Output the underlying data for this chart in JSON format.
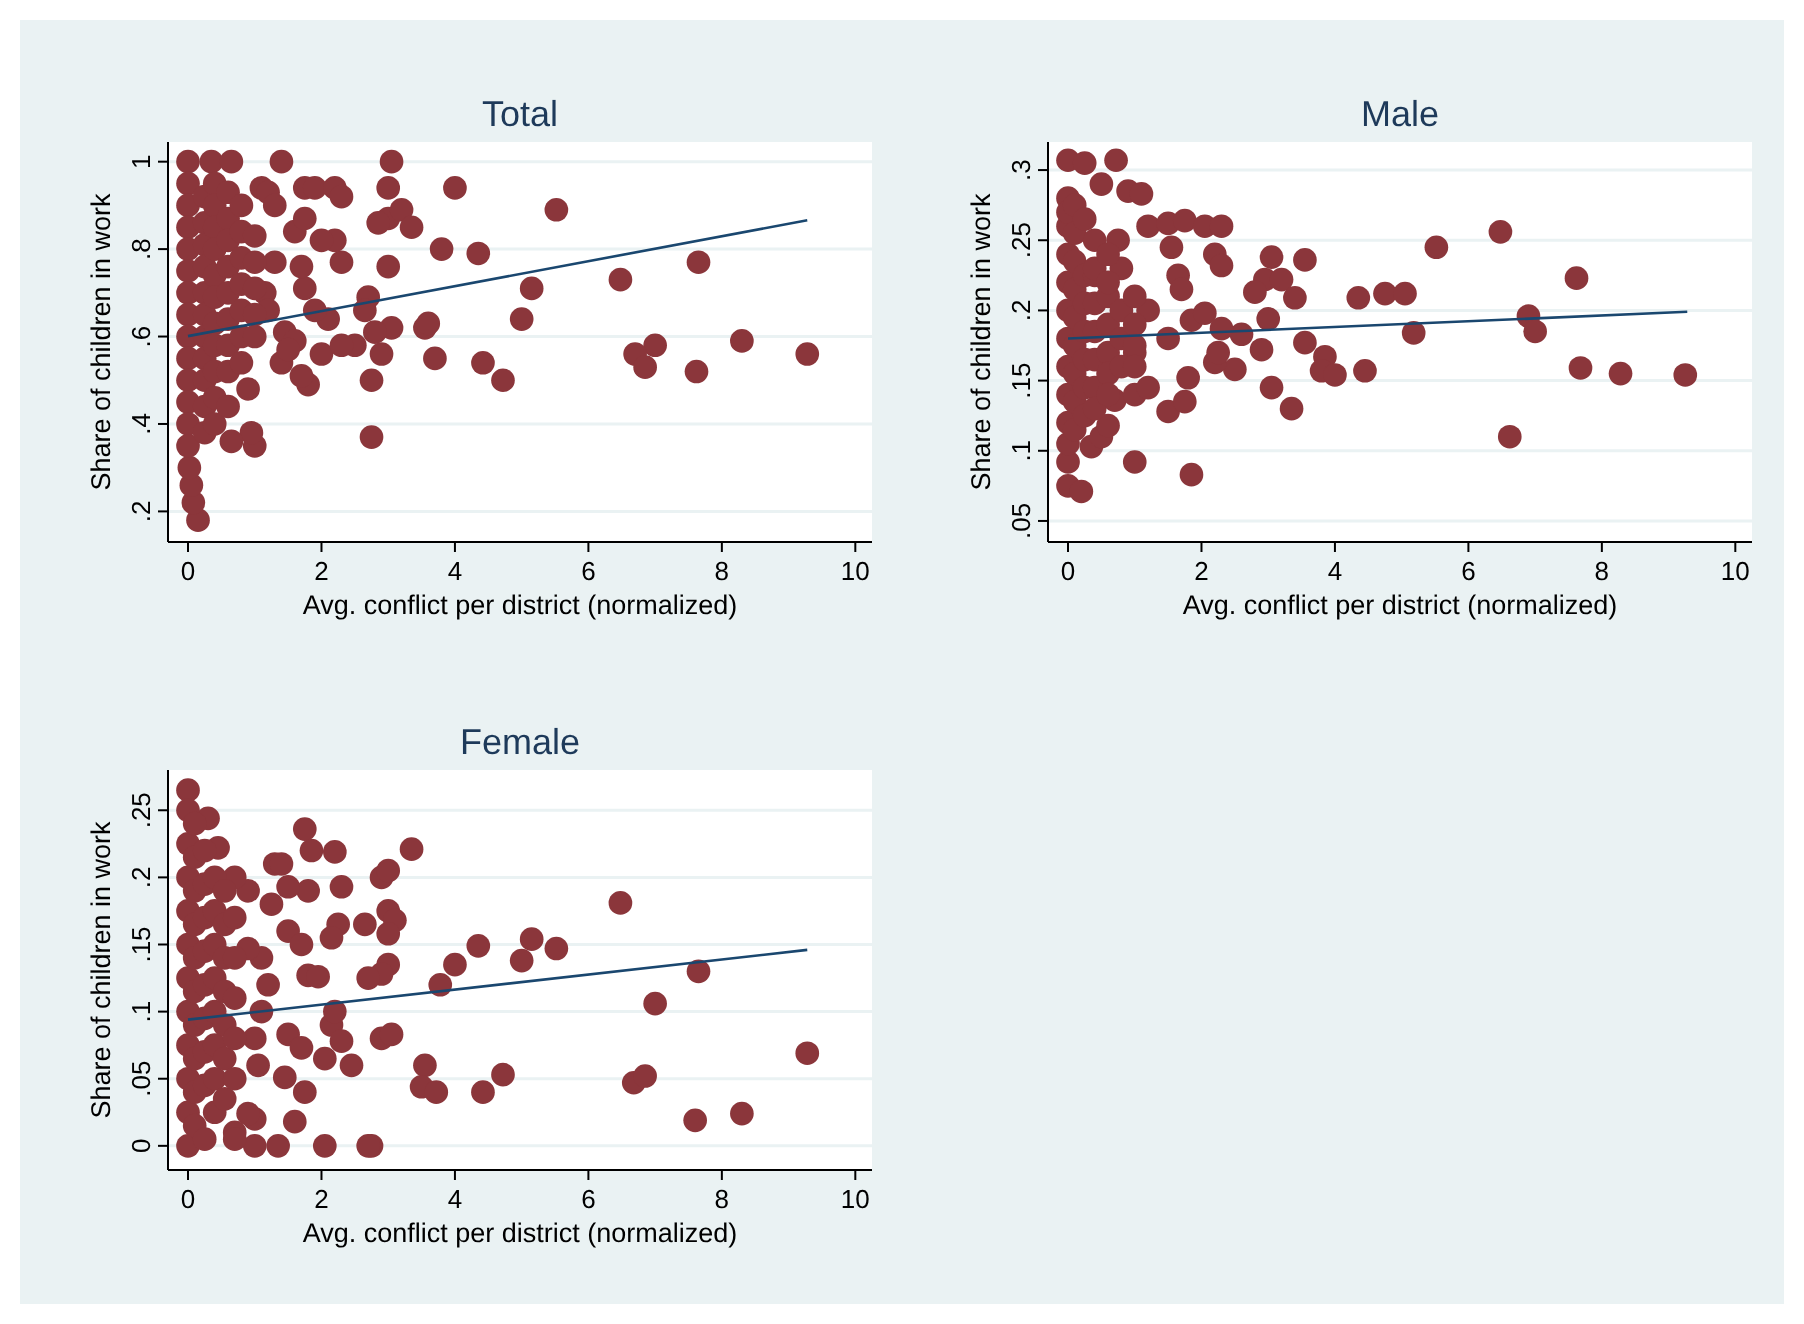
{
  "chart_data": [
    {
      "type": "scatter",
      "title": "Total",
      "xlabel": "Avg. conflict per district (normalized)",
      "ylabel": "Share of children in work",
      "xlim": [
        -0.3,
        10.25
      ],
      "ylim": [
        0.13,
        1.045
      ],
      "xticks": [
        0,
        2,
        4,
        6,
        8,
        10
      ],
      "yticks": [
        {
          "value": 0.2,
          "label": ".2"
        },
        {
          "value": 0.4,
          "label": ".4"
        },
        {
          "value": 0.6,
          "label": ".6"
        },
        {
          "value": 0.8,
          "label": ".8"
        },
        {
          "value": 1,
          "label": "1"
        }
      ],
      "grid": "y",
      "marker": "circle",
      "series": [
        {
          "type": "scatter",
          "color": "#8b363b",
          "x": [
            1.4,
            3.05,
            0.35,
            0.65,
            1.75,
            1.9,
            2.2,
            2.3,
            3.0,
            4.0,
            5.52,
            3.0,
            3.2,
            3.35,
            2.85,
            3.8,
            4.35,
            2.3,
            3.0,
            7.65,
            6.48,
            5.15,
            2.7,
            2.65,
            5.0,
            3.55,
            3.6,
            3.05,
            2.8,
            8.3,
            7.0,
            6.7,
            6.85,
            7.62,
            9.28,
            2.9,
            3.7,
            4.42,
            4.72,
            2.75,
            2.75,
            1.8,
            1.7,
            1.4,
            2.0,
            2.5,
            2.3,
            2.1,
            1.9,
            1.75,
            1.7,
            2.2,
            2.0,
            1.6,
            1.75,
            1.1,
            1.2,
            1.3,
            0.9,
            1.0,
            0.95,
            0.65,
            0.15,
            0.08,
            0.05,
            0.02,
            1.15,
            1.2,
            1.3,
            1.45,
            1.6,
            1.5,
            0,
            0,
            0,
            0,
            0,
            0,
            0,
            0,
            0,
            0,
            0,
            0,
            0,
            0,
            0.25,
            0.25,
            0.25,
            0.25,
            0.25,
            0.25,
            0.25,
            0.25,
            0.25,
            0.25,
            0.25,
            0.4,
            0.4,
            0.4,
            0.4,
            0.4,
            0.4,
            0.4,
            0.4,
            0.4,
            0.4,
            0.4,
            0.6,
            0.6,
            0.6,
            0.6,
            0.6,
            0.6,
            0.6,
            0.6,
            0.6,
            0.8,
            0.8,
            0.8,
            0.8,
            0.8,
            0.8,
            0.8,
            1.0,
            1.0,
            1.0,
            1.0,
            1.0
          ],
          "values": [
            1.0,
            1.0,
            1.0,
            1.0,
            0.94,
            0.94,
            0.94,
            0.92,
            0.94,
            0.94,
            0.89,
            0.87,
            0.89,
            0.85,
            0.86,
            0.8,
            0.79,
            0.77,
            0.76,
            0.77,
            0.73,
            0.71,
            0.69,
            0.66,
            0.64,
            0.62,
            0.63,
            0.62,
            0.61,
            0.59,
            0.58,
            0.56,
            0.53,
            0.52,
            0.56,
            0.56,
            0.55,
            0.54,
            0.5,
            0.5,
            0.37,
            0.49,
            0.51,
            0.54,
            0.56,
            0.58,
            0.58,
            0.64,
            0.66,
            0.71,
            0.76,
            0.82,
            0.82,
            0.84,
            0.87,
            0.94,
            0.93,
            0.9,
            0.48,
            0.35,
            0.38,
            0.36,
            0.18,
            0.22,
            0.26,
            0.3,
            0.7,
            0.66,
            0.77,
            0.61,
            0.59,
            0.57,
            1.0,
            0.95,
            0.9,
            0.85,
            0.8,
            0.75,
            0.7,
            0.65,
            0.6,
            0.55,
            0.5,
            0.45,
            0.4,
            0.35,
            0.92,
            0.86,
            0.81,
            0.76,
            0.7,
            0.65,
            0.6,
            0.55,
            0.5,
            0.44,
            0.38,
            0.95,
            0.9,
            0.85,
            0.8,
            0.74,
            0.69,
            0.63,
            0.58,
            0.52,
            0.46,
            0.4,
            0.93,
            0.87,
            0.82,
            0.76,
            0.7,
            0.64,
            0.58,
            0.52,
            0.44,
            0.9,
            0.84,
            0.78,
            0.72,
            0.66,
            0.6,
            0.54,
            0.83,
            0.77,
            0.71,
            0.65,
            0.6
          ]
        },
        {
          "type": "line",
          "color": "#1a476f",
          "x": [
            0,
            9.28
          ],
          "values": [
            0.601,
            0.866
          ],
          "marker": "none"
        }
      ]
    },
    {
      "type": "scatter",
      "title": "Male",
      "xlabel": "Avg. conflict per district (normalized)",
      "ylabel": "Share of children in work",
      "xlim": [
        -0.3,
        10.25
      ],
      "ylim": [
        0.035,
        0.32
      ],
      "xticks": [
        0,
        2,
        4,
        6,
        8,
        10
      ],
      "yticks": [
        {
          "value": 0.05,
          "label": ".05"
        },
        {
          "value": 0.1,
          "label": ".1"
        },
        {
          "value": 0.15,
          "label": ".15"
        },
        {
          "value": 0.2,
          "label": ".2"
        },
        {
          "value": 0.25,
          "label": ".25"
        },
        {
          "value": 0.3,
          "label": ".3"
        }
      ],
      "grid": "y",
      "marker": "circle",
      "series": [
        {
          "type": "scatter",
          "color": "#8b363b",
          "x": [
            0,
            0.25,
            0.72,
            0.5,
            0.9,
            1.1,
            1.2,
            1.5,
            1.75,
            2.05,
            2.3,
            1.55,
            2.2,
            2.3,
            3.05,
            3.55,
            5.52,
            6.48,
            7.62,
            2.95,
            3.2,
            2.8,
            3.4,
            4.35,
            4.75,
            5.05,
            6.9,
            7.0,
            5.18,
            3.0,
            2.6,
            2.9,
            3.55,
            3.85,
            3.8,
            4.0,
            4.45,
            7.68,
            8.28,
            9.25,
            3.05,
            3.35,
            6.62,
            1.85,
            1.0,
            0,
            0,
            0.2,
            0.35,
            0.5,
            0.6,
            0.7,
            1.0,
            1.2,
            1.5,
            1.75,
            1.8,
            2.5,
            2.2,
            2.25,
            1.85,
            2.05,
            2.3,
            1.65,
            1.7,
            1.2,
            1.5,
            1.0,
            0.8,
            0.75,
            0,
            0,
            0,
            0,
            0,
            0,
            0,
            0,
            0,
            0,
            0,
            0.1,
            0.1,
            0.1,
            0.1,
            0.1,
            0.1,
            0.1,
            0.1,
            0.1,
            0.25,
            0.25,
            0.25,
            0.25,
            0.25,
            0.25,
            0.25,
            0.4,
            0.4,
            0.4,
            0.4,
            0.4,
            0.4,
            0.4,
            0.4,
            0.6,
            0.6,
            0.6,
            0.6,
            0.6,
            0.6,
            0.6,
            0.8,
            0.8,
            0.8,
            1.0,
            1.0,
            1.0,
            1.0
          ],
          "values": [
            0.307,
            0.305,
            0.307,
            0.29,
            0.285,
            0.283,
            0.26,
            0.262,
            0.264,
            0.26,
            0.26,
            0.245,
            0.24,
            0.232,
            0.238,
            0.236,
            0.245,
            0.256,
            0.223,
            0.222,
            0.222,
            0.213,
            0.209,
            0.209,
            0.212,
            0.212,
            0.196,
            0.185,
            0.184,
            0.194,
            0.183,
            0.172,
            0.177,
            0.167,
            0.157,
            0.154,
            0.157,
            0.159,
            0.155,
            0.154,
            0.145,
            0.13,
            0.11,
            0.083,
            0.092,
            0.092,
            0.075,
            0.071,
            0.103,
            0.11,
            0.118,
            0.136,
            0.14,
            0.145,
            0.128,
            0.135,
            0.152,
            0.158,
            0.163,
            0.17,
            0.193,
            0.198,
            0.187,
            0.225,
            0.215,
            0.2,
            0.18,
            0.17,
            0.23,
            0.25,
            0.28,
            0.26,
            0.24,
            0.22,
            0.2,
            0.18,
            0.16,
            0.14,
            0.12,
            0.105,
            0.27,
            0.275,
            0.255,
            0.235,
            0.215,
            0.195,
            0.175,
            0.155,
            0.135,
            0.115,
            0.225,
            0.205,
            0.185,
            0.165,
            0.145,
            0.125,
            0.265,
            0.225,
            0.205,
            0.185,
            0.165,
            0.145,
            0.13,
            0.25,
            0.23,
            0.21,
            0.19,
            0.17,
            0.155,
            0.14,
            0.24,
            0.22,
            0.2,
            0.18,
            0.16,
            0.21,
            0.19,
            0.175,
            0.16
          ]
        },
        {
          "type": "line",
          "color": "#1a476f",
          "x": [
            0,
            9.28
          ],
          "values": [
            0.18,
            0.199
          ],
          "marker": "none"
        }
      ]
    },
    {
      "type": "scatter",
      "title": "Female",
      "xlabel": "Avg. conflict per district (normalized)",
      "ylabel": "Share of children in work",
      "xlim": [
        -0.3,
        10.25
      ],
      "ylim": [
        -0.018,
        0.28
      ],
      "xticks": [
        0,
        2,
        4,
        6,
        8,
        10
      ],
      "yticks": [
        0,
        {
          "value": 0.05,
          "label": ".05"
        },
        {
          "value": 0.1,
          "label": ".1"
        },
        {
          "value": 0.15,
          "label": ".15"
        },
        {
          "value": 0.2,
          "label": ".2"
        },
        {
          "value": 0.25,
          "label": ".25"
        }
      ],
      "grid": "y",
      "marker": "circle",
      "series": [
        {
          "type": "scatter",
          "color": "#8b363b",
          "x": [
            0,
            0.3,
            0.45,
            1.75,
            1.85,
            2.2,
            3.35,
            2.3,
            1.8,
            1.5,
            2.9,
            3.0,
            1.3,
            1.4,
            6.48,
            3.0,
            3.1,
            2.65,
            2.25,
            2.15,
            3.0,
            4.35,
            5.15,
            5.52,
            5.0,
            4.0,
            3.0,
            2.9,
            2.7,
            3.78,
            7.65,
            1.8,
            1.95,
            7.0,
            2.15,
            2.2,
            2.9,
            3.05,
            2.3,
            1.5,
            1.7,
            2.05,
            2.45,
            3.55,
            3.5,
            3.72,
            4.42,
            4.72,
            6.68,
            6.85,
            9.28,
            7.6,
            8.3,
            1.6,
            1.45,
            1.75,
            1.35,
            2.05,
            2.75,
            2.7,
            1.0,
            0.9,
            0.7,
            1.0,
            1.05,
            1.0,
            1.1,
            1.2,
            1.1,
            0.9,
            1.5,
            1.7,
            1.25,
            0.9,
            0.7,
            0,
            0,
            0,
            0,
            0,
            0,
            0,
            0,
            0,
            0,
            0,
            0.1,
            0.1,
            0.1,
            0.1,
            0.1,
            0.1,
            0.1,
            0.1,
            0.1,
            0.1,
            0.25,
            0.25,
            0.25,
            0.25,
            0.25,
            0.25,
            0.25,
            0.25,
            0.25,
            0.4,
            0.4,
            0.4,
            0.4,
            0.4,
            0.4,
            0.4,
            0.4,
            0.55,
            0.55,
            0.55,
            0.55,
            0.55,
            0.55,
            0.55,
            0.7,
            0.7,
            0.7,
            0.7,
            0.7,
            0.7
          ],
          "values": [
            0.265,
            0.244,
            0.222,
            0.236,
            0.22,
            0.219,
            0.221,
            0.193,
            0.19,
            0.193,
            0.2,
            0.205,
            0.21,
            0.21,
            0.181,
            0.175,
            0.168,
            0.165,
            0.165,
            0.155,
            0.158,
            0.149,
            0.154,
            0.147,
            0.138,
            0.135,
            0.135,
            0.128,
            0.125,
            0.12,
            0.13,
            0.127,
            0.126,
            0.106,
            0.09,
            0.1,
            0.08,
            0.083,
            0.078,
            0.083,
            0.073,
            0.065,
            0.06,
            0.06,
            0.044,
            0.04,
            0.04,
            0.053,
            0.047,
            0.052,
            0.069,
            0.019,
            0.024,
            0.018,
            0.051,
            0.04,
            0,
            0,
            0,
            0,
            0.02,
            0.024,
            0.01,
            0,
            0.06,
            0.08,
            0.1,
            0.12,
            0.14,
            0.147,
            0.16,
            0.15,
            0.18,
            0.19,
            0.2,
            0.25,
            0.225,
            0.2,
            0.175,
            0.15,
            0.125,
            0.1,
            0.075,
            0.05,
            0.025,
            0,
            0.24,
            0.215,
            0.19,
            0.165,
            0.14,
            0.115,
            0.09,
            0.065,
            0.04,
            0.015,
            0.22,
            0.195,
            0.17,
            0.145,
            0.12,
            0.095,
            0.07,
            0.045,
            0.005,
            0.2,
            0.175,
            0.15,
            0.125,
            0.1,
            0.075,
            0.05,
            0.025,
            0.19,
            0.165,
            0.14,
            0.115,
            0.09,
            0.065,
            0.035,
            0.17,
            0.14,
            0.11,
            0.08,
            0.05,
            0.005
          ]
        },
        {
          "type": "line",
          "color": "#1a476f",
          "x": [
            0,
            9.28
          ],
          "values": [
            0.094,
            0.146
          ],
          "marker": "none"
        }
      ]
    }
  ]
}
